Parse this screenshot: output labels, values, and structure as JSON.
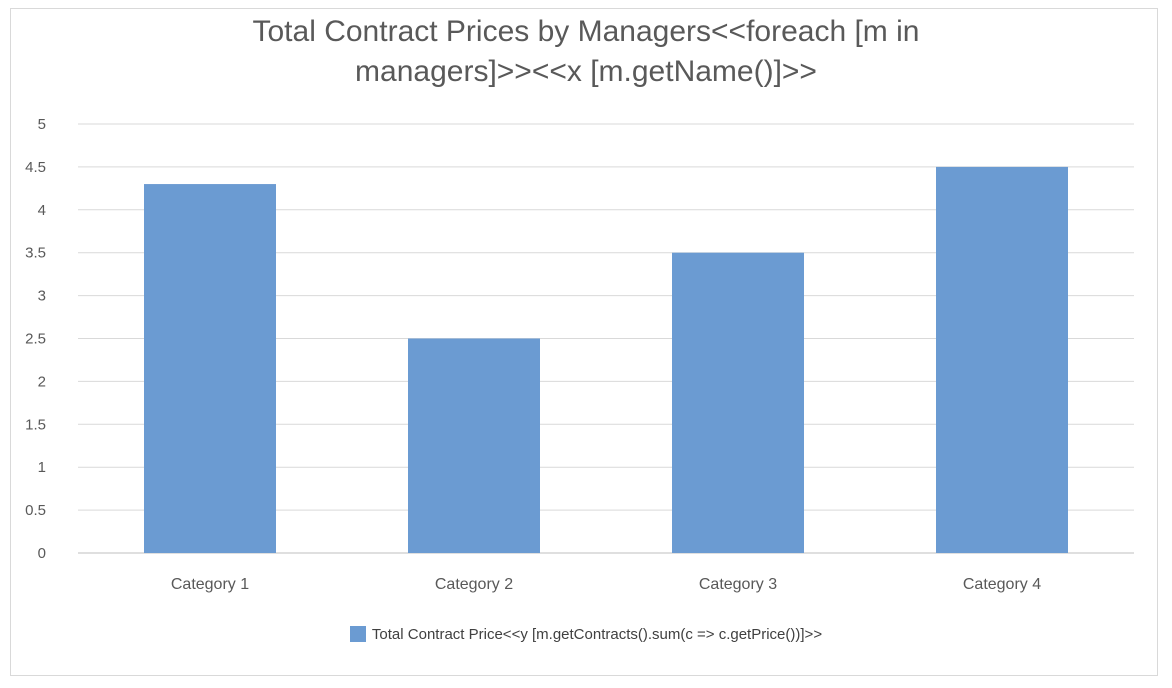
{
  "chart_data": {
    "type": "bar",
    "title_line1": "Total Contract Prices by Managers<<foreach [m in",
    "title_line2": "managers]>><<x [m.getName()]>>",
    "categories": [
      "Category 1",
      "Category 2",
      "Category 3",
      "Category 4"
    ],
    "series": [
      {
        "name": "Total Contract Price<<y [m.getContracts().sum(c => c.getPrice())]>>",
        "values": [
          4.3,
          2.5,
          3.5,
          4.5
        ],
        "color": "#6b9bd2"
      }
    ],
    "yticks": [
      "0",
      "0.5",
      "1",
      "1.5",
      "2",
      "2.5",
      "3",
      "3.5",
      "4",
      "4.5",
      "5"
    ],
    "ylim": [
      0,
      5
    ],
    "grid": true,
    "legend_position": "bottom"
  }
}
